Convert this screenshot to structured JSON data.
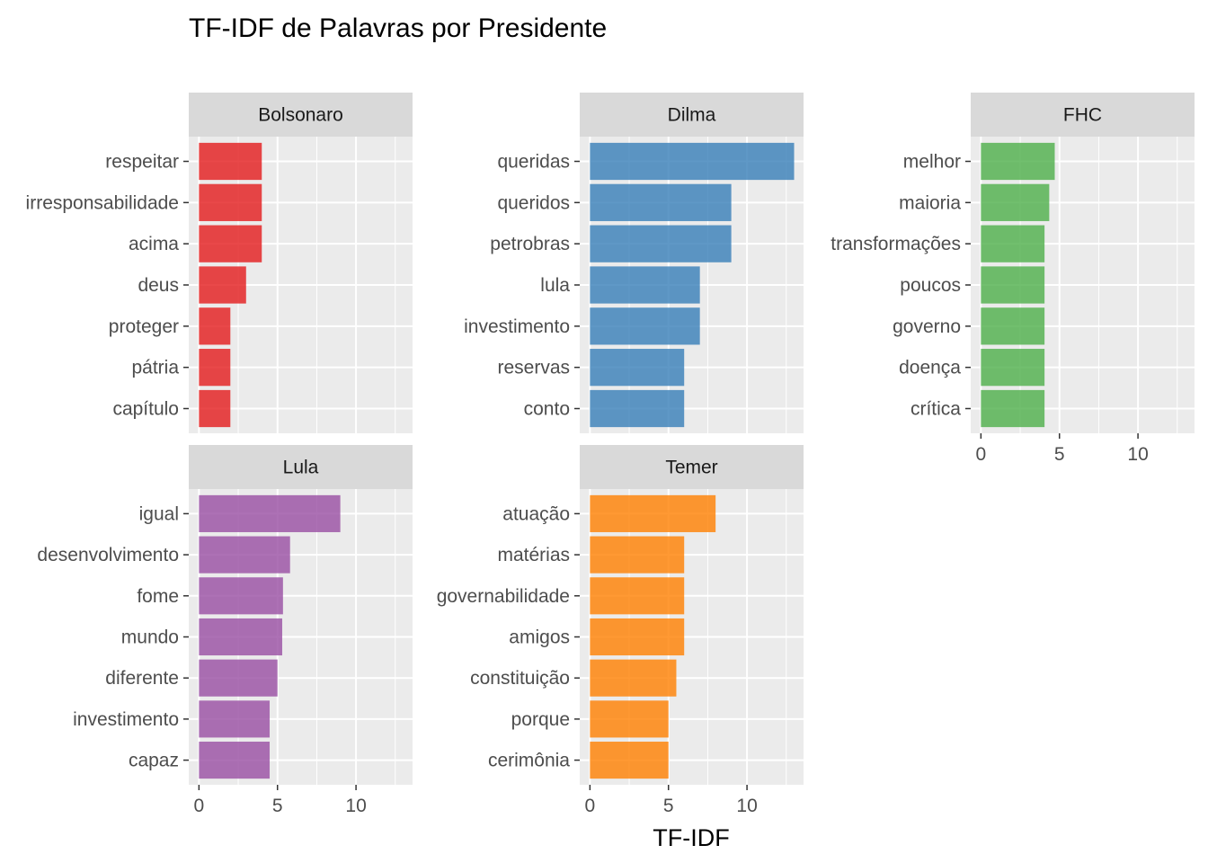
{
  "chart_data": {
    "type": "bar",
    "title": "TF-IDF de Palavras por Presidente",
    "xlabel": "TF-IDF",
    "ylabel": "",
    "xlim": [
      -0.65,
      13.6
    ],
    "x_ticks": [
      0,
      5,
      10
    ],
    "orientation": "horizontal",
    "grid": true,
    "panels": [
      {
        "name": "Bolsonaro",
        "color": "#E41A1C",
        "categories": [
          "respeitar",
          "irresponsabilidade",
          "acima",
          "deus",
          "proteger",
          "pátria",
          "capítulo"
        ],
        "values": [
          4.0,
          4.0,
          4.0,
          3.0,
          2.0,
          2.0,
          2.0
        ]
      },
      {
        "name": "Dilma",
        "color": "#377EB8",
        "categories": [
          "queridas",
          "queridos",
          "petrobras",
          "lula",
          "investimento",
          "reservas",
          "conto"
        ],
        "values": [
          13.0,
          9.0,
          9.0,
          7.0,
          7.0,
          6.0,
          6.0
        ]
      },
      {
        "name": "FHC",
        "color": "#4DAF4A",
        "categories": [
          "melhor",
          "maioria",
          "transformações",
          "poucos",
          "governo",
          "doença",
          "crítica"
        ],
        "values": [
          4.7,
          4.35,
          4.05,
          4.05,
          4.05,
          4.05,
          4.05
        ]
      },
      {
        "name": "Lula",
        "color": "#984EA3",
        "categories": [
          "igual",
          "desenvolvimento",
          "fome",
          "mundo",
          "diferente",
          "investimento",
          "capaz"
        ],
        "values": [
          9.0,
          5.8,
          5.35,
          5.3,
          5.0,
          4.5,
          4.5
        ]
      },
      {
        "name": "Temer",
        "color": "#FF7F00",
        "categories": [
          "atuação",
          "matérias",
          "governabilidade",
          "amigos",
          "constituição",
          "porque",
          "cerimônia"
        ],
        "values": [
          8.0,
          6.0,
          6.0,
          6.0,
          5.5,
          5.0,
          5.0
        ]
      }
    ]
  }
}
